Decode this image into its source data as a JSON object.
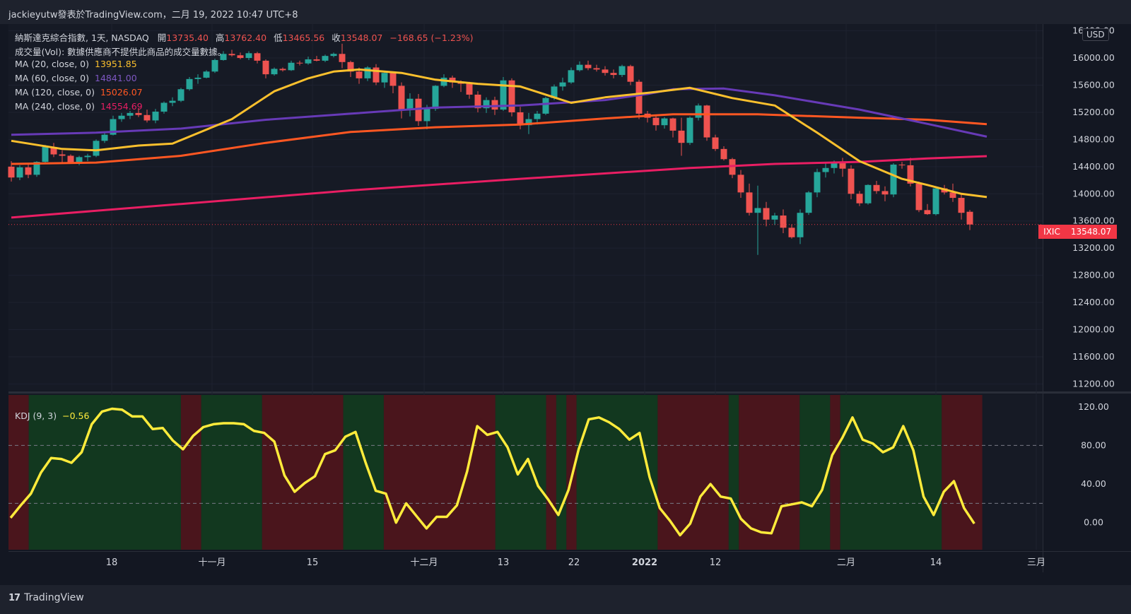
{
  "header": {
    "publisher": "jackieyutw發表於TradingView.com，二月 19, 2022 10:47 UTC+8"
  },
  "legend": {
    "symbol_line": "納斯達克綜合指數, 1天, NASDAQ",
    "open_label": "開",
    "open": "13735.40",
    "high_label": "高",
    "high": "13762.40",
    "low_label": "低",
    "low": "13465.56",
    "close_label": "收",
    "close": "13548.07",
    "change": "−168.65 (−1.23%)",
    "volume_note": "成交量(Vol): 數據供應商不提供此商品的成交量數據。",
    "ma": [
      {
        "label": "MA (20, close, 0)",
        "value": "13951.85",
        "color": "#fbc02d"
      },
      {
        "label": "MA (60, close, 0)",
        "value": "14841.00",
        "color": "#673ab7"
      },
      {
        "label": "MA (120, close, 0)",
        "value": "15026.07",
        "color": "#ff5722"
      },
      {
        "label": "MA (240, close, 0)",
        "value": "14554.69",
        "color": "#e91e63"
      }
    ],
    "kdj_label": "KDJ (9, 3)",
    "kdj_value": "−0.56"
  },
  "currency": "USD",
  "last_price_label": {
    "symbol": "IXIC",
    "price": "13548.07"
  },
  "brand": "TradingView",
  "colors": {
    "up": "#26a69a",
    "down": "#ef5350",
    "kdj_line": "#ffeb3b",
    "bull_bg": "#12381f",
    "bear_bg": "#4a151c"
  },
  "chart_data": [
    {
      "type": "candlestick",
      "x_ticks": [
        "18",
        "十一月",
        "15",
        "十二月",
        "13",
        "22",
        "2022",
        "12",
        "二月",
        "14",
        "三月"
      ],
      "y_ticks": [
        "11200.00",
        "11600.00",
        "12000.00",
        "12400.00",
        "12800.00",
        "13200.00",
        "13600.00",
        "14000.00",
        "14400.00",
        "14800.00",
        "15200.00",
        "15600.00",
        "16000.00",
        "16400.00"
      ],
      "ylim": [
        11100,
        16500
      ],
      "candles": [
        [
          14400,
          14480,
          14180,
          14240
        ],
        [
          14240,
          14420,
          14200,
          14390
        ],
        [
          14390,
          14440,
          14230,
          14280
        ],
        [
          14280,
          14480,
          14250,
          14470
        ],
        [
          14470,
          14720,
          14450,
          14690
        ],
        [
          14690,
          14750,
          14540,
          14580
        ],
        [
          14580,
          14640,
          14460,
          14560
        ],
        [
          14560,
          14580,
          14440,
          14460
        ],
        [
          14460,
          14560,
          14420,
          14540
        ],
        [
          14540,
          14590,
          14480,
          14560
        ],
        [
          14560,
          14800,
          14540,
          14780
        ],
        [
          14780,
          14900,
          14750,
          14870
        ],
        [
          14870,
          15150,
          14860,
          15100
        ],
        [
          15100,
          15190,
          15060,
          15150
        ],
        [
          15150,
          15220,
          15100,
          15190
        ],
        [
          15190,
          15260,
          15130,
          15160
        ],
        [
          15160,
          15240,
          15050,
          15080
        ],
        [
          15080,
          15250,
          15040,
          15210
        ],
        [
          15210,
          15360,
          15180,
          15340
        ],
        [
          15340,
          15420,
          15290,
          15370
        ],
        [
          15370,
          15560,
          15350,
          15540
        ],
        [
          15540,
          15720,
          15520,
          15690
        ],
        [
          15690,
          15760,
          15620,
          15710
        ],
        [
          15710,
          15820,
          15700,
          15800
        ],
        [
          15800,
          15990,
          15780,
          15970
        ],
        [
          15970,
          16100,
          15960,
          16060
        ],
        [
          16060,
          16120,
          16020,
          16040
        ],
        [
          16040,
          16080,
          15980,
          16000
        ],
        [
          16000,
          16100,
          15970,
          16070
        ],
        [
          16070,
          16090,
          15920,
          15960
        ],
        [
          15960,
          15980,
          15700,
          15760
        ],
        [
          15760,
          15860,
          15740,
          15840
        ],
        [
          15840,
          15860,
          15800,
          15820
        ],
        [
          15820,
          15960,
          15810,
          15930
        ],
        [
          15930,
          15960,
          15890,
          15920
        ],
        [
          15920,
          16020,
          15900,
          15980
        ],
        [
          15980,
          16030,
          15950,
          15960
        ],
        [
          15960,
          16050,
          15940,
          16030
        ],
        [
          16030,
          16080,
          16010,
          16060
        ],
        [
          16060,
          16210,
          15850,
          15940
        ],
        [
          15940,
          15960,
          15720,
          15800
        ],
        [
          15800,
          15860,
          15620,
          15700
        ],
        [
          15700,
          15880,
          15660,
          15860
        ],
        [
          15860,
          15910,
          15600,
          15640
        ],
        [
          15640,
          15790,
          15560,
          15780
        ],
        [
          15780,
          15800,
          15480,
          15590
        ],
        [
          15590,
          15640,
          15110,
          15230
        ],
        [
          15230,
          15480,
          15140,
          15400
        ],
        [
          15400,
          15470,
          15000,
          15070
        ],
        [
          15070,
          15310,
          14950,
          15250
        ],
        [
          15250,
          15600,
          15220,
          15590
        ],
        [
          15590,
          15760,
          15570,
          15710
        ],
        [
          15710,
          15740,
          15560,
          15640
        ],
        [
          15640,
          15670,
          15500,
          15620
        ],
        [
          15620,
          15650,
          15400,
          15460
        ],
        [
          15460,
          15510,
          15200,
          15260
        ],
        [
          15260,
          15420,
          15190,
          15380
        ],
        [
          15380,
          15430,
          15160,
          15240
        ],
        [
          15240,
          15720,
          15220,
          15670
        ],
        [
          15670,
          15700,
          15140,
          15200
        ],
        [
          15200,
          15280,
          14950,
          15010
        ],
        [
          15010,
          15190,
          14880,
          15100
        ],
        [
          15100,
          15220,
          15020,
          15180
        ],
        [
          15180,
          15430,
          15160,
          15410
        ],
        [
          15410,
          15610,
          15380,
          15580
        ],
        [
          15580,
          15710,
          15520,
          15640
        ],
        [
          15640,
          15860,
          15620,
          15820
        ],
        [
          15820,
          15950,
          15800,
          15900
        ],
        [
          15900,
          15960,
          15820,
          15850
        ],
        [
          15850,
          15900,
          15800,
          15830
        ],
        [
          15830,
          15880,
          15740,
          15780
        ],
        [
          15780,
          15830,
          15700,
          15750
        ],
        [
          15750,
          15900,
          15720,
          15880
        ],
        [
          15880,
          15900,
          15600,
          15650
        ],
        [
          15650,
          15680,
          15100,
          15180
        ],
        [
          15180,
          15220,
          15050,
          15120
        ],
        [
          15120,
          15160,
          14930,
          15010
        ],
        [
          15010,
          15130,
          14960,
          15110
        ],
        [
          15110,
          15120,
          14830,
          14930
        ],
        [
          14930,
          15120,
          14560,
          14750
        ],
        [
          14750,
          15140,
          14720,
          15120
        ],
        [
          15120,
          15330,
          15080,
          15300
        ],
        [
          15300,
          15310,
          14780,
          14830
        ],
        [
          14830,
          14870,
          14630,
          14660
        ],
        [
          14660,
          14700,
          14490,
          14510
        ],
        [
          14510,
          14530,
          14230,
          14280
        ],
        [
          14280,
          14350,
          13940,
          14020
        ],
        [
          14020,
          14150,
          13680,
          13720
        ],
        [
          13720,
          14120,
          13100,
          13790
        ],
        [
          13790,
          13880,
          13520,
          13620
        ],
        [
          13620,
          13720,
          13540,
          13680
        ],
        [
          13680,
          13770,
          13420,
          13500
        ],
        [
          13500,
          13550,
          13340,
          13360
        ],
        [
          13360,
          13770,
          13260,
          13720
        ],
        [
          13720,
          14040,
          13690,
          14020
        ],
        [
          14020,
          14370,
          13950,
          14320
        ],
        [
          14320,
          14450,
          14240,
          14380
        ],
        [
          14380,
          14490,
          14300,
          14460
        ],
        [
          14460,
          14530,
          14250,
          14370
        ],
        [
          14370,
          14420,
          13920,
          14000
        ],
        [
          14000,
          14040,
          13820,
          13860
        ],
        [
          13860,
          14140,
          13840,
          14130
        ],
        [
          14130,
          14190,
          14000,
          14040
        ],
        [
          14040,
          14110,
          13890,
          13990
        ],
        [
          13990,
          14450,
          13950,
          14430
        ],
        [
          14430,
          14470,
          14370,
          14420
        ],
        [
          14420,
          14530,
          14110,
          14150
        ],
        [
          14150,
          14180,
          13730,
          13760
        ],
        [
          13760,
          13850,
          13690,
          13700
        ],
        [
          13700,
          14100,
          13680,
          14080
        ],
        [
          14080,
          14130,
          13990,
          14020
        ],
        [
          14020,
          14150,
          13880,
          13940
        ],
        [
          13940,
          13990,
          13620,
          13720
        ],
        [
          13735.4,
          13762.4,
          13465.56,
          13548.07
        ]
      ],
      "ma": {
        "ma20": [
          [
            0,
            14780
          ],
          [
            6,
            14660
          ],
          [
            10,
            14640
          ],
          [
            15,
            14710
          ],
          [
            19,
            14740
          ],
          [
            26,
            15100
          ],
          [
            31,
            15510
          ],
          [
            35,
            15700
          ],
          [
            38,
            15800
          ],
          [
            41,
            15830
          ],
          [
            46,
            15780
          ],
          [
            50,
            15680
          ],
          [
            55,
            15620
          ],
          [
            60,
            15580
          ],
          [
            64,
            15420
          ],
          [
            66,
            15340
          ],
          [
            70,
            15420
          ],
          [
            76,
            15500
          ],
          [
            80,
            15560
          ],
          [
            85,
            15410
          ],
          [
            90,
            15300
          ],
          [
            95,
            14900
          ],
          [
            100,
            14480
          ],
          [
            105,
            14220
          ],
          [
            108,
            14130
          ],
          [
            112,
            14000
          ],
          [
            115,
            13951.85
          ]
        ],
        "ma60": [
          [
            0,
            14870
          ],
          [
            10,
            14900
          ],
          [
            20,
            14960
          ],
          [
            30,
            15090
          ],
          [
            40,
            15180
          ],
          [
            50,
            15270
          ],
          [
            60,
            15300
          ],
          [
            70,
            15380
          ],
          [
            75,
            15470
          ],
          [
            78,
            15540
          ],
          [
            84,
            15550
          ],
          [
            90,
            15450
          ],
          [
            100,
            15240
          ],
          [
            108,
            15030
          ],
          [
            115,
            14841
          ]
        ],
        "ma120": [
          [
            0,
            14440
          ],
          [
            10,
            14460
          ],
          [
            20,
            14560
          ],
          [
            30,
            14750
          ],
          [
            40,
            14910
          ],
          [
            50,
            14980
          ],
          [
            60,
            15020
          ],
          [
            70,
            15110
          ],
          [
            78,
            15170
          ],
          [
            88,
            15170
          ],
          [
            100,
            15120
          ],
          [
            108,
            15090
          ],
          [
            115,
            15026.07
          ]
        ],
        "ma240": [
          [
            0,
            13650
          ],
          [
            20,
            13850
          ],
          [
            40,
            14050
          ],
          [
            60,
            14220
          ],
          [
            80,
            14380
          ],
          [
            90,
            14440
          ],
          [
            100,
            14470
          ],
          [
            108,
            14520
          ],
          [
            115,
            14554.69
          ]
        ]
      }
    },
    {
      "type": "line",
      "series_label": "KDJ (9, 3)",
      "y_ticks": [
        "0.00",
        "40.00",
        "80.00",
        "120.00"
      ],
      "ylim": [
        -28,
        133
      ],
      "reference_lines": [
        80,
        20
      ],
      "values": [
        5,
        18,
        30,
        52,
        67,
        66,
        62,
        73,
        102,
        115,
        118,
        117,
        110,
        110,
        97,
        98,
        85,
        76,
        90,
        99,
        102,
        103,
        103,
        102,
        95,
        93,
        84,
        49,
        32,
        41,
        48,
        71,
        75,
        89,
        94,
        62,
        33,
        30,
        0,
        20,
        7,
        -6,
        6,
        6,
        18,
        53,
        100,
        91,
        94,
        78,
        50,
        66,
        38,
        24,
        8,
        34,
        76,
        107,
        109,
        104,
        97,
        86,
        93,
        47,
        15,
        2,
        -13,
        -1,
        27,
        40,
        27,
        25,
        4,
        -6,
        -10,
        -11,
        17,
        19,
        21,
        17,
        34,
        70,
        88,
        109,
        86,
        82,
        73,
        78,
        100,
        75,
        27,
        8,
        32,
        43,
        15,
        -1
      ],
      "regimes": [
        {
          "type": "bear",
          "start": 0,
          "end": 2
        },
        {
          "type": "bull",
          "start": 2,
          "end": 17
        },
        {
          "type": "bear",
          "start": 17,
          "end": 19
        },
        {
          "type": "bull",
          "start": 19,
          "end": 25
        },
        {
          "type": "bear",
          "start": 25,
          "end": 33
        },
        {
          "type": "bull",
          "start": 33,
          "end": 37
        },
        {
          "type": "bear",
          "start": 37,
          "end": 48
        },
        {
          "type": "bull",
          "start": 48,
          "end": 53
        },
        {
          "type": "bear",
          "start": 53,
          "end": 54
        },
        {
          "type": "bull",
          "start": 54,
          "end": 55
        },
        {
          "type": "bear",
          "start": 55,
          "end": 56
        },
        {
          "type": "bull",
          "start": 56,
          "end": 64
        },
        {
          "type": "bear",
          "start": 64,
          "end": 71
        },
        {
          "type": "bull",
          "start": 71,
          "end": 72
        },
        {
          "type": "bear",
          "start": 72,
          "end": 78
        },
        {
          "type": "bull",
          "start": 78,
          "end": 81
        },
        {
          "type": "bear",
          "start": 81,
          "end": 82
        },
        {
          "type": "bull",
          "start": 82,
          "end": 92
        },
        {
          "type": "bear",
          "start": 92,
          "end": 96
        }
      ]
    }
  ]
}
